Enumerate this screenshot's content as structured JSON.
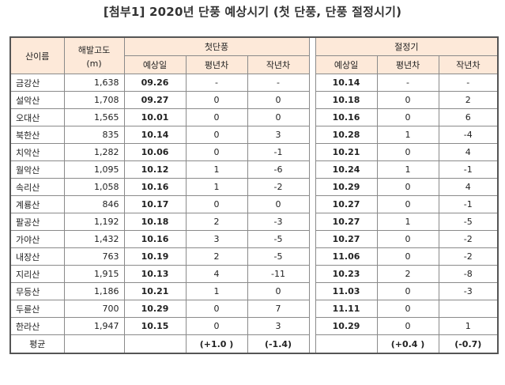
{
  "title": "[첨부1] 2020년 단풍 예상시기 (첫 단풍, 단풍 절정시기)",
  "headers": {
    "mountain": "산이름",
    "altitude": "해발고도",
    "altitude_unit": "(m)",
    "first": "첫단풍",
    "peak": "절정기",
    "expected": "예상일",
    "vs_avg": "평년차",
    "vs_last": "작년차"
  },
  "rows": [
    {
      "name": "금강산",
      "alt": "1,638",
      "f_date": "09.26",
      "f_avg": "-",
      "f_last": "-",
      "p_date": "10.14",
      "p_avg": "-",
      "p_last": "-"
    },
    {
      "name": "설악산",
      "alt": "1,708",
      "f_date": "09.27",
      "f_avg": "0",
      "f_last": "0",
      "p_date": "10.18",
      "p_avg": "0",
      "p_last": "2"
    },
    {
      "name": "오대산",
      "alt": "1,565",
      "f_date": "10.01",
      "f_avg": "0",
      "f_last": "0",
      "p_date": "10.16",
      "p_avg": "0",
      "p_last": "6"
    },
    {
      "name": "북한산",
      "alt": "835",
      "f_date": "10.14",
      "f_avg": "0",
      "f_last": "3",
      "p_date": "10.28",
      "p_avg": "1",
      "p_last": "-4"
    },
    {
      "name": "치악산",
      "alt": "1,282",
      "f_date": "10.06",
      "f_avg": "0",
      "f_last": "-1",
      "p_date": "10.21",
      "p_avg": "0",
      "p_last": "4"
    },
    {
      "name": "월악산",
      "alt": "1,095",
      "f_date": "10.12",
      "f_avg": "1",
      "f_last": "-6",
      "p_date": "10.24",
      "p_avg": "1",
      "p_last": "-1"
    },
    {
      "name": "속리산",
      "alt": "1,058",
      "f_date": "10.16",
      "f_avg": "1",
      "f_last": "-2",
      "p_date": "10.29",
      "p_avg": "0",
      "p_last": "4"
    },
    {
      "name": "계룡산",
      "alt": "846",
      "f_date": "10.17",
      "f_avg": "0",
      "f_last": "0",
      "p_date": "10.27",
      "p_avg": "0",
      "p_last": "-1"
    },
    {
      "name": "팔공산",
      "alt": "1,192",
      "f_date": "10.18",
      "f_avg": "2",
      "f_last": "-3",
      "p_date": "10.27",
      "p_avg": "1",
      "p_last": "-5"
    },
    {
      "name": "가야산",
      "alt": "1,432",
      "f_date": "10.16",
      "f_avg": "3",
      "f_last": "-5",
      "p_date": "10.27",
      "p_avg": "0",
      "p_last": "-2"
    },
    {
      "name": "내장산",
      "alt": "763",
      "f_date": "10.19",
      "f_avg": "2",
      "f_last": "-5",
      "p_date": "11.06",
      "p_avg": "0",
      "p_last": "-2"
    },
    {
      "name": "지리산",
      "alt": "1,915",
      "f_date": "10.13",
      "f_avg": "4",
      "f_last": "-11",
      "p_date": "10.23",
      "p_avg": "2",
      "p_last": "-8"
    },
    {
      "name": "무등산",
      "alt": "1,186",
      "f_date": "10.21",
      "f_avg": "1",
      "f_last": "0",
      "p_date": "11.03",
      "p_avg": "0",
      "p_last": "-3"
    },
    {
      "name": "두륜산",
      "alt": "700",
      "f_date": "10.29",
      "f_avg": "0",
      "f_last": "7",
      "p_date": "11.11",
      "p_avg": "0",
      "p_last": ""
    },
    {
      "name": "한라산",
      "alt": "1,947",
      "f_date": "10.15",
      "f_avg": "0",
      "f_last": "3",
      "p_date": "10.29",
      "p_avg": "0",
      "p_last": "1"
    }
  ],
  "average": {
    "label": "평균",
    "f_avg": "(+1.0 )",
    "f_last": "(-1.4)",
    "p_avg": "(+0.4 )",
    "p_last": "(-0.7)"
  }
}
